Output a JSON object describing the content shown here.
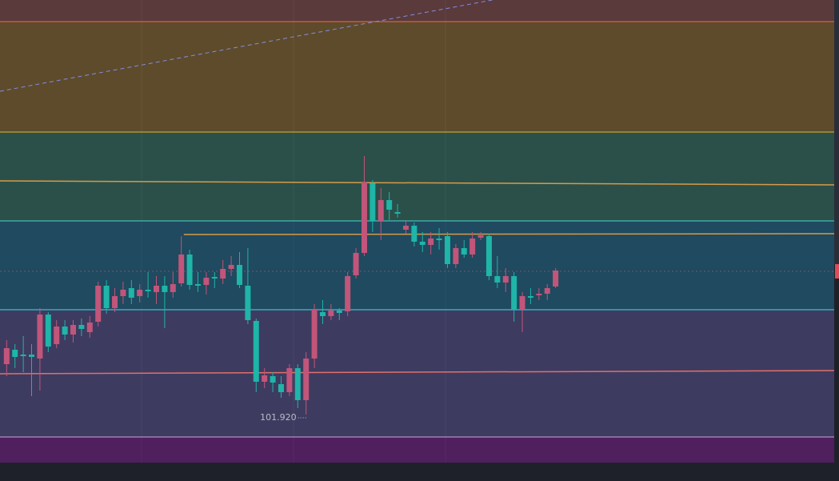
{
  "chart_data": {
    "type": "candlestick",
    "xlim": [
      -0.8,
      99.5
    ],
    "ylim": [
      101.32,
      107.1
    ],
    "up_color": "#c2557a",
    "down_color": "#1fb5a8",
    "open": [
      102.55,
      102.73,
      102.67,
      102.67,
      102.62,
      103.17,
      102.8,
      103.02,
      102.92,
      103.04,
      102.95,
      103.08,
      103.53,
      103.25,
      103.4,
      103.5,
      103.4,
      103.48,
      103.45,
      103.53,
      103.45,
      103.56,
      103.92,
      103.55,
      103.54,
      103.64,
      103.62,
      103.74,
      103.79,
      103.53,
      103.09,
      102.33,
      102.4,
      102.3,
      102.2,
      102.5,
      102.1,
      102.62,
      103.2,
      103.15,
      103.22,
      103.21,
      103.66,
      103.94,
      104.81,
      104.34,
      104.6,
      104.45,
      104.23,
      104.28,
      104.08,
      104.04,
      104.12,
      104.15,
      103.8,
      104.0,
      103.92,
      104.13,
      104.15,
      103.65,
      103.57,
      103.65,
      103.23,
      103.4,
      103.41,
      103.43,
      103.52
    ],
    "high": [
      102.85,
      102.8,
      102.9,
      102.8,
      103.25,
      103.2,
      103.1,
      103.1,
      103.1,
      103.12,
      103.15,
      103.58,
      103.6,
      103.5,
      103.58,
      103.6,
      103.55,
      103.7,
      103.65,
      103.65,
      103.7,
      104.15,
      103.98,
      103.7,
      103.7,
      103.7,
      103.85,
      103.9,
      103.95,
      104.0,
      103.12,
      102.5,
      102.45,
      102.4,
      102.55,
      102.55,
      102.7,
      103.3,
      103.35,
      103.3,
      103.25,
      103.7,
      104.0,
      105.15,
      104.85,
      104.75,
      104.7,
      104.55,
      104.35,
      104.32,
      104.2,
      104.2,
      104.25,
      104.2,
      104.05,
      104.1,
      104.2,
      104.2,
      104.18,
      103.9,
      103.75,
      103.7,
      103.45,
      103.5,
      103.5,
      103.55,
      103.75
    ],
    "low": [
      102.4,
      102.5,
      102.45,
      102.15,
      102.22,
      102.7,
      102.75,
      102.85,
      102.82,
      102.9,
      102.88,
      103.02,
      103.18,
      103.2,
      103.3,
      103.3,
      103.32,
      103.38,
      103.3,
      103.0,
      103.38,
      103.52,
      103.48,
      103.45,
      103.42,
      103.5,
      103.55,
      103.65,
      103.5,
      103.05,
      102.2,
      102.25,
      102.2,
      102.13,
      102.15,
      102.0,
      101.92,
      102.5,
      103.05,
      103.1,
      103.1,
      103.15,
      103.62,
      103.9,
      104.2,
      104.1,
      104.35,
      104.38,
      104.18,
      104.02,
      103.95,
      103.92,
      103.98,
      103.75,
      103.75,
      103.88,
      103.88,
      104.1,
      103.6,
      103.5,
      103.45,
      103.08,
      102.95,
      103.3,
      103.35,
      103.35,
      103.5
    ],
    "close": [
      102.75,
      102.64,
      102.65,
      102.64,
      103.17,
      102.77,
      103.02,
      102.92,
      103.04,
      102.99,
      103.07,
      103.53,
      103.25,
      103.4,
      103.48,
      103.38,
      103.48,
      103.46,
      103.53,
      103.45,
      103.55,
      103.92,
      103.54,
      103.53,
      103.63,
      103.62,
      103.74,
      103.79,
      103.54,
      103.1,
      102.33,
      102.41,
      102.32,
      102.2,
      102.5,
      102.1,
      102.62,
      103.23,
      103.15,
      103.22,
      103.19,
      103.65,
      103.94,
      104.82,
      104.34,
      104.6,
      104.48,
      104.43,
      104.28,
      104.08,
      104.04,
      104.12,
      104.1,
      103.8,
      104.0,
      103.92,
      104.12,
      104.16,
      103.65,
      103.57,
      103.65,
      103.23,
      103.4,
      103.38,
      103.43,
      103.5,
      103.72
    ],
    "levels": [
      106.83,
      105.45,
      104.34,
      103.23,
      101.64
    ],
    "level_colors": [
      "#d2643c",
      "#c8a032",
      "#3cbeb4",
      "#3cbed2",
      "#b48cc8"
    ],
    "band_colors": [
      "#5b3a3c",
      "#5e4b2c",
      "#2b5049",
      "#1f4a5f",
      "#3e3b60",
      "#4f1f5e"
    ],
    "trend_lines": [
      {
        "x": [
          -0.8,
          99.5
        ],
        "y": [
          104.84,
          104.79
        ],
        "color": "#d89a48"
      },
      {
        "x": [
          21.3,
          99.5
        ],
        "y": [
          104.17,
          104.18
        ],
        "color": "#d89a48"
      },
      {
        "x": [
          -0.8,
          99.5
        ],
        "y": [
          102.43,
          102.47
        ],
        "color": "#e0706a"
      },
      {
        "x": [
          -0.8,
          58.4
        ],
        "y": [
          105.96,
          107.1
        ],
        "color": "#7f8fe0",
        "dashed": true
      }
    ],
    "last_price": 103.71,
    "annotations": [
      {
        "label": "101.920",
        "value": 101.92
      }
    ]
  }
}
